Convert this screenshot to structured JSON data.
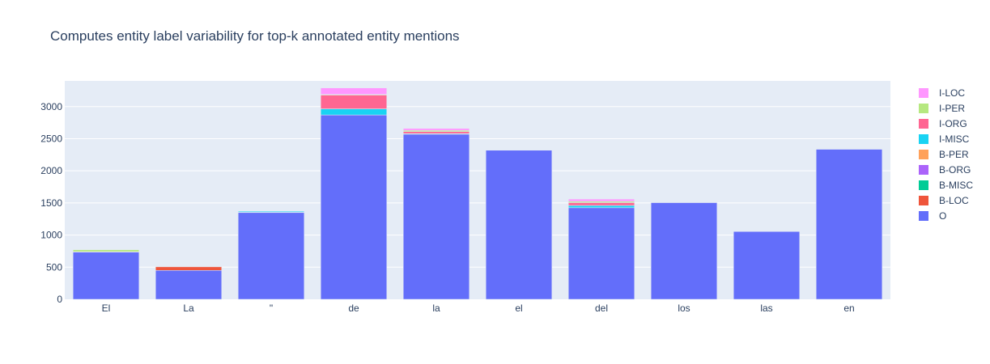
{
  "chart_data": {
    "type": "bar",
    "barmode": "stack",
    "title": "Computes entity label variability for top-k annotated entity mentions",
    "xlabel": "",
    "ylabel": "",
    "ylim": [
      0,
      3400
    ],
    "yticks": [
      0,
      500,
      1000,
      1500,
      2000,
      2500,
      3000
    ],
    "grid": true,
    "legend_position": "right",
    "categories": [
      "El",
      "La",
      "\"",
      "de",
      "la",
      "el",
      "del",
      "los",
      "las",
      "en"
    ],
    "series": [
      {
        "name": "O",
        "color": "#636efa",
        "values": [
          735,
          450,
          1350,
          2870,
          2570,
          2320,
          1425,
          1505,
          1055,
          2335
        ]
      },
      {
        "name": "B-LOC",
        "color": "#EF553B",
        "values": [
          5,
          55,
          0,
          0,
          0,
          0,
          0,
          0,
          0,
          0
        ]
      },
      {
        "name": "B-MISC",
        "color": "#00cc96",
        "values": [
          0,
          0,
          5,
          0,
          0,
          0,
          0,
          0,
          0,
          0
        ]
      },
      {
        "name": "B-ORG",
        "color": "#ab63fa",
        "values": [
          0,
          0,
          0,
          0,
          0,
          0,
          0,
          0,
          0,
          0
        ]
      },
      {
        "name": "B-PER",
        "color": "#FFA15A",
        "values": [
          0,
          0,
          0,
          0,
          0,
          0,
          0,
          0,
          0,
          0
        ]
      },
      {
        "name": "I-MISC",
        "color": "#19d3f3",
        "values": [
          0,
          0,
          15,
          95,
          10,
          0,
          35,
          0,
          0,
          0
        ]
      },
      {
        "name": "I-ORG",
        "color": "#FF6692",
        "values": [
          0,
          0,
          0,
          215,
          30,
          0,
          45,
          0,
          0,
          0
        ]
      },
      {
        "name": "I-PER",
        "color": "#B6E880",
        "values": [
          30,
          0,
          0,
          10,
          20,
          0,
          20,
          0,
          0,
          0
        ]
      },
      {
        "name": "I-LOC",
        "color": "#FF97FF",
        "values": [
          0,
          0,
          0,
          100,
          30,
          0,
          35,
          5,
          0,
          0
        ]
      }
    ]
  }
}
